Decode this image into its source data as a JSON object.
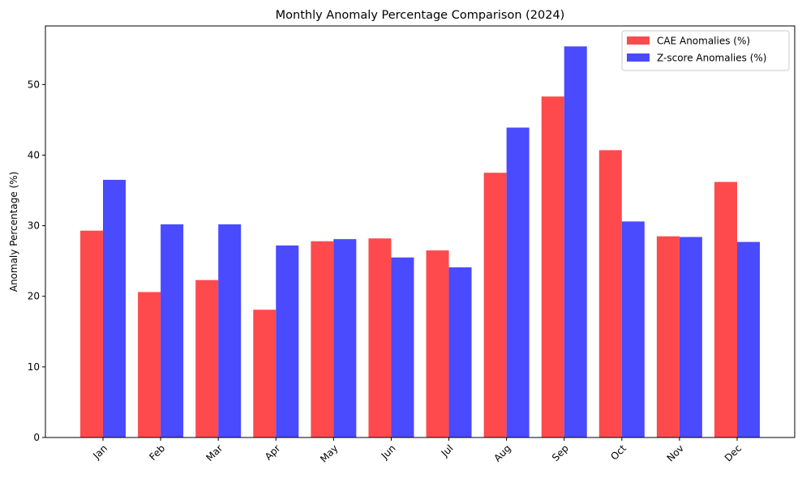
{
  "chart_data": {
    "type": "bar",
    "title": "Monthly Anomaly Percentage Comparison (2024)",
    "xlabel": "",
    "ylabel": "Anomaly Percentage (%)",
    "categories": [
      "Jan",
      "Feb",
      "Mar",
      "Apr",
      "May",
      "Jun",
      "Jul",
      "Aug",
      "Sep",
      "Oct",
      "Nov",
      "Dec"
    ],
    "series": [
      {
        "name": "CAE Anomalies (%)",
        "color": "#ff4a4d",
        "values": [
          29.3,
          20.6,
          22.3,
          18.1,
          27.8,
          28.2,
          26.5,
          37.5,
          48.3,
          40.7,
          28.5,
          36.2
        ]
      },
      {
        "name": "Z-score Anomalies (%)",
        "color": "#4a4aff",
        "values": [
          36.5,
          30.2,
          30.2,
          27.2,
          28.1,
          25.5,
          24.1,
          43.9,
          55.4,
          30.6,
          28.4,
          27.7
        ]
      }
    ],
    "ylim": [
      0,
      58.3
    ],
    "yticks": [
      0,
      10,
      20,
      30,
      40,
      50
    ],
    "xtick_rotation": 45,
    "grid": false,
    "legend_position": "top-right"
  }
}
